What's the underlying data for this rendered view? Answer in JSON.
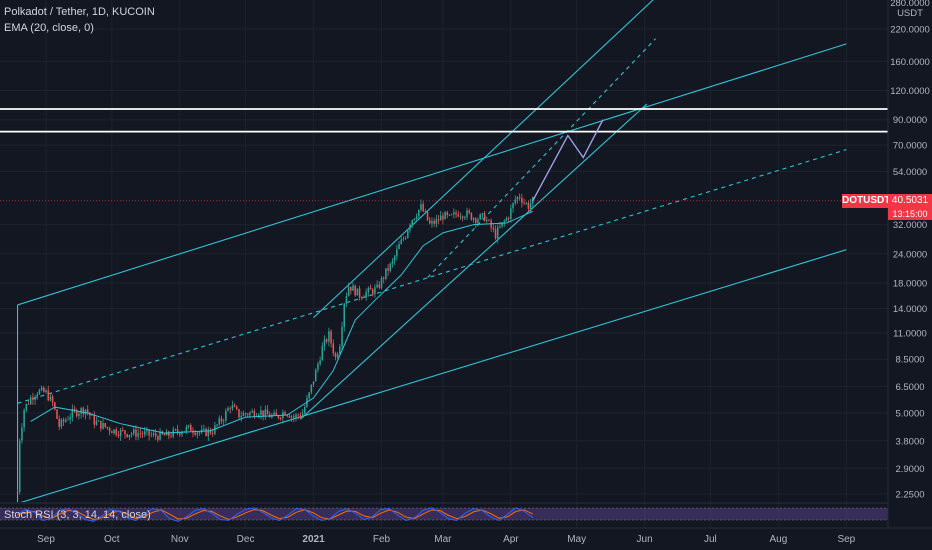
{
  "legend": {
    "symbol_line": "Polkadot / Tether, 1D, KUCOIN",
    "indicator_line": "EMA (20, close, 0)"
  },
  "oscillator": {
    "label": "Stoch RSI (3, 3, 14, 14, close)",
    "axis_zero": "0"
  },
  "price_axis": {
    "currency": "USDT",
    "top_label": "280.0000"
  },
  "last_price": {
    "ticker": "DOTUSDT",
    "value": "40.5031",
    "countdown": "13:15:00"
  },
  "colors": {
    "background": "#131722",
    "channel": "#2ec4d6",
    "candle_up": "#26a69a",
    "candle_down": "#ef5350",
    "horizontal_levels": "#ffffff",
    "last_price": "#f23645",
    "projection": "#9e9ee6",
    "rsi_band": "#7e57c2"
  },
  "chart_data": {
    "type": "candlestick",
    "title": "Polkadot / Tether, 1D, KUCOIN",
    "y_scale": "log",
    "y_ticks": [
      {
        "label": "220.0000",
        "value": 220
      },
      {
        "label": "160.0000",
        "value": 160
      },
      {
        "label": "120.0000",
        "value": 120
      },
      {
        "label": "90.0000",
        "value": 90
      },
      {
        "label": "70.0000",
        "value": 70
      },
      {
        "label": "54.0000",
        "value": 54
      },
      {
        "label": "40.5031",
        "value": 40.5031
      },
      {
        "label": "32.0000",
        "value": 32
      },
      {
        "label": "24.0000",
        "value": 24
      },
      {
        "label": "18.0000",
        "value": 18
      },
      {
        "label": "14.0000",
        "value": 14
      },
      {
        "label": "11.0000",
        "value": 11
      },
      {
        "label": "8.5000",
        "value": 8.5
      },
      {
        "label": "6.5000",
        "value": 6.5
      },
      {
        "label": "5.0000",
        "value": 5
      },
      {
        "label": "3.8000",
        "value": 3.8
      },
      {
        "label": "2.9000",
        "value": 2.9
      },
      {
        "label": "2.2500",
        "value": 2.25
      }
    ],
    "x_ticks": [
      {
        "label": "Sep",
        "date": "2020-09-01"
      },
      {
        "label": "Oct",
        "date": "2020-10-01"
      },
      {
        "label": "Nov",
        "date": "2020-11-01"
      },
      {
        "label": "Dec",
        "date": "2020-12-01"
      },
      {
        "label": "2021",
        "date": "2021-01-01"
      },
      {
        "label": "Feb",
        "date": "2021-02-01"
      },
      {
        "label": "Mar",
        "date": "2021-03-01"
      },
      {
        "label": "Apr",
        "date": "2021-04-01"
      },
      {
        "label": "May",
        "date": "2021-05-01"
      },
      {
        "label": "Jun",
        "date": "2021-06-01"
      },
      {
        "label": "Jul",
        "date": "2021-07-01"
      },
      {
        "label": "Aug",
        "date": "2021-08-01"
      },
      {
        "label": "Sep",
        "date": "2021-09-01"
      }
    ],
    "x_range": [
      "2020-08-11",
      "2021-09-20"
    ],
    "y_range": [
      2.0,
      290
    ],
    "price_path": [
      {
        "date": "2020-08-19",
        "price": 2.3
      },
      {
        "date": "2020-08-20",
        "price": 3.9
      },
      {
        "date": "2020-08-22",
        "price": 5.2
      },
      {
        "date": "2020-08-25",
        "price": 5.8
      },
      {
        "date": "2020-08-28",
        "price": 6.2
      },
      {
        "date": "2020-09-01",
        "price": 6.1
      },
      {
        "date": "2020-09-04",
        "price": 5.5
      },
      {
        "date": "2020-09-07",
        "price": 4.4
      },
      {
        "date": "2020-09-10",
        "price": 4.7
      },
      {
        "date": "2020-09-13",
        "price": 5.0
      },
      {
        "date": "2020-09-16",
        "price": 5.1
      },
      {
        "date": "2020-09-19",
        "price": 5.2
      },
      {
        "date": "2020-09-23",
        "price": 4.6
      },
      {
        "date": "2020-09-27",
        "price": 4.4
      },
      {
        "date": "2020-10-02",
        "price": 4.2
      },
      {
        "date": "2020-10-08",
        "price": 4.1
      },
      {
        "date": "2020-10-14",
        "price": 4.1
      },
      {
        "date": "2020-10-20",
        "price": 4.0
      },
      {
        "date": "2020-10-26",
        "price": 4.0
      },
      {
        "date": "2020-11-01",
        "price": 4.2
      },
      {
        "date": "2020-11-06",
        "price": 4.3
      },
      {
        "date": "2020-11-11",
        "price": 4.1
      },
      {
        "date": "2020-11-16",
        "price": 4.2
      },
      {
        "date": "2020-11-21",
        "price": 4.8
      },
      {
        "date": "2020-11-24",
        "price": 5.4
      },
      {
        "date": "2020-11-28",
        "price": 4.9
      },
      {
        "date": "2020-12-03",
        "price": 5.0
      },
      {
        "date": "2020-12-07",
        "price": 5.1
      },
      {
        "date": "2020-12-11",
        "price": 4.9
      },
      {
        "date": "2020-12-15",
        "price": 4.8
      },
      {
        "date": "2020-12-19",
        "price": 5.1
      },
      {
        "date": "2020-12-23",
        "price": 4.8
      },
      {
        "date": "2020-12-27",
        "price": 5.0
      },
      {
        "date": "2020-12-30",
        "price": 6.0
      },
      {
        "date": "2021-01-02",
        "price": 7.5
      },
      {
        "date": "2021-01-05",
        "price": 9.5
      },
      {
        "date": "2021-01-08",
        "price": 10.8
      },
      {
        "date": "2021-01-11",
        "price": 8.6
      },
      {
        "date": "2021-01-13",
        "price": 10.0
      },
      {
        "date": "2021-01-15",
        "price": 15.0
      },
      {
        "date": "2021-01-17",
        "price": 17.5
      },
      {
        "date": "2021-01-19",
        "price": 17.0
      },
      {
        "date": "2021-01-22",
        "price": 16.0
      },
      {
        "date": "2021-01-26",
        "price": 16.5
      },
      {
        "date": "2021-01-30",
        "price": 17.0
      },
      {
        "date": "2021-02-03",
        "price": 20.0
      },
      {
        "date": "2021-02-06",
        "price": 22.0
      },
      {
        "date": "2021-02-09",
        "price": 26.0
      },
      {
        "date": "2021-02-12",
        "price": 29.0
      },
      {
        "date": "2021-02-14",
        "price": 33.0
      },
      {
        "date": "2021-02-17",
        "price": 36.0
      },
      {
        "date": "2021-02-19",
        "price": 38.0
      },
      {
        "date": "2021-02-21",
        "price": 35.0
      },
      {
        "date": "2021-02-23",
        "price": 32.0
      },
      {
        "date": "2021-02-26",
        "price": 33.0
      },
      {
        "date": "2021-03-01",
        "price": 35.0
      },
      {
        "date": "2021-03-04",
        "price": 34.0
      },
      {
        "date": "2021-03-08",
        "price": 36.0
      },
      {
        "date": "2021-03-12",
        "price": 35.5
      },
      {
        "date": "2021-03-16",
        "price": 34.0
      },
      {
        "date": "2021-03-20",
        "price": 34.5
      },
      {
        "date": "2021-03-23",
        "price": 31.0
      },
      {
        "date": "2021-03-25",
        "price": 29.0
      },
      {
        "date": "2021-03-28",
        "price": 32.0
      },
      {
        "date": "2021-03-31",
        "price": 35.0
      },
      {
        "date": "2021-04-03",
        "price": 41.0
      },
      {
        "date": "2021-04-05",
        "price": 42.5
      },
      {
        "date": "2021-04-07",
        "price": 40.0
      },
      {
        "date": "2021-04-09",
        "price": 38.5
      },
      {
        "date": "2021-04-11",
        "price": 40.5
      }
    ],
    "ema_path": [
      {
        "date": "2020-08-25",
        "price": 4.6
      },
      {
        "date": "2020-09-05",
        "price": 5.3
      },
      {
        "date": "2020-09-20",
        "price": 5.0
      },
      {
        "date": "2020-10-05",
        "price": 4.5
      },
      {
        "date": "2020-10-25",
        "price": 4.1
      },
      {
        "date": "2020-11-15",
        "price": 4.2
      },
      {
        "date": "2020-12-01",
        "price": 4.8
      },
      {
        "date": "2020-12-20",
        "price": 4.9
      },
      {
        "date": "2021-01-01",
        "price": 5.8
      },
      {
        "date": "2021-01-10",
        "price": 7.6
      },
      {
        "date": "2021-01-20",
        "price": 12.5
      },
      {
        "date": "2021-01-30",
        "price": 15.5
      },
      {
        "date": "2021-02-10",
        "price": 19.5
      },
      {
        "date": "2021-02-20",
        "price": 26.0
      },
      {
        "date": "2021-03-01",
        "price": 29.5
      },
      {
        "date": "2021-03-15",
        "price": 32.0
      },
      {
        "date": "2021-03-30",
        "price": 32.5
      },
      {
        "date": "2021-04-11",
        "price": 36.5
      }
    ],
    "projection_path": [
      {
        "date": "2021-04-11",
        "price": 40.5
      },
      {
        "date": "2021-04-27",
        "price": 77.0
      },
      {
        "date": "2021-05-04",
        "price": 62.0
      },
      {
        "date": "2021-05-13",
        "price": 90.0
      }
    ],
    "horizontal_levels": [
      {
        "price": 100
      },
      {
        "price": 80
      }
    ],
    "trend_lines": [
      {
        "style": "solid",
        "from": {
          "date": "2020-08-19",
          "price": 2.05
        },
        "to": {
          "date": "2021-09-01",
          "price": 25.0
        }
      },
      {
        "style": "solid",
        "from": {
          "date": "2020-08-19",
          "price": 14.5
        },
        "to": {
          "date": "2021-09-01",
          "price": 190.0
        }
      },
      {
        "style": "dashed",
        "from": {
          "date": "2020-08-19",
          "price": 5.5
        },
        "to": {
          "date": "2021-09-01",
          "price": 67.0
        }
      },
      {
        "style": "solid",
        "from": {
          "date": "2020-12-26",
          "price": 4.7
        },
        "to": {
          "date": "2021-06-02",
          "price": 105.0
        }
      },
      {
        "style": "solid",
        "from": {
          "date": "2021-01-01",
          "price": 12.8
        },
        "to": {
          "date": "2021-06-06",
          "price": 300.0
        }
      },
      {
        "style": "dashed",
        "from": {
          "date": "2021-02-22",
          "price": 19.0
        },
        "to": {
          "date": "2021-06-06",
          "price": 200.0
        }
      },
      {
        "style": "solid",
        "from": {
          "date": "2020-08-19",
          "price": 2.05
        },
        "to": {
          "date": "2020-08-19",
          "price": 14.5
        }
      }
    ],
    "stoch_rsi": {
      "k": [
        55,
        80,
        65,
        20,
        30,
        75,
        85,
        60,
        25,
        15,
        45,
        80,
        70,
        35,
        20,
        55,
        85,
        75,
        30,
        15,
        40,
        75,
        85,
        60,
        25,
        20,
        55,
        80,
        90,
        65,
        35,
        20,
        50,
        85,
        80,
        45,
        20,
        30,
        70,
        85,
        60,
        25,
        40,
        80,
        85,
        50,
        20,
        35,
        75,
        90,
        65,
        30,
        20,
        60,
        85,
        75,
        40,
        20,
        55,
        90,
        70,
        35
      ],
      "d": [
        50,
        65,
        70,
        45,
        30,
        55,
        75,
        70,
        45,
        25,
        35,
        60,
        72,
        55,
        30,
        40,
        65,
        78,
        55,
        28,
        32,
        55,
        75,
        70,
        45,
        25,
        40,
        62,
        80,
        75,
        50,
        30,
        38,
        65,
        80,
        62,
        35,
        28,
        50,
        72,
        70,
        45,
        35,
        60,
        78,
        65,
        38,
        30,
        55,
        78,
        75,
        48,
        30,
        42,
        68,
        78,
        58,
        32,
        40,
        70,
        78,
        55
      ]
    }
  }
}
